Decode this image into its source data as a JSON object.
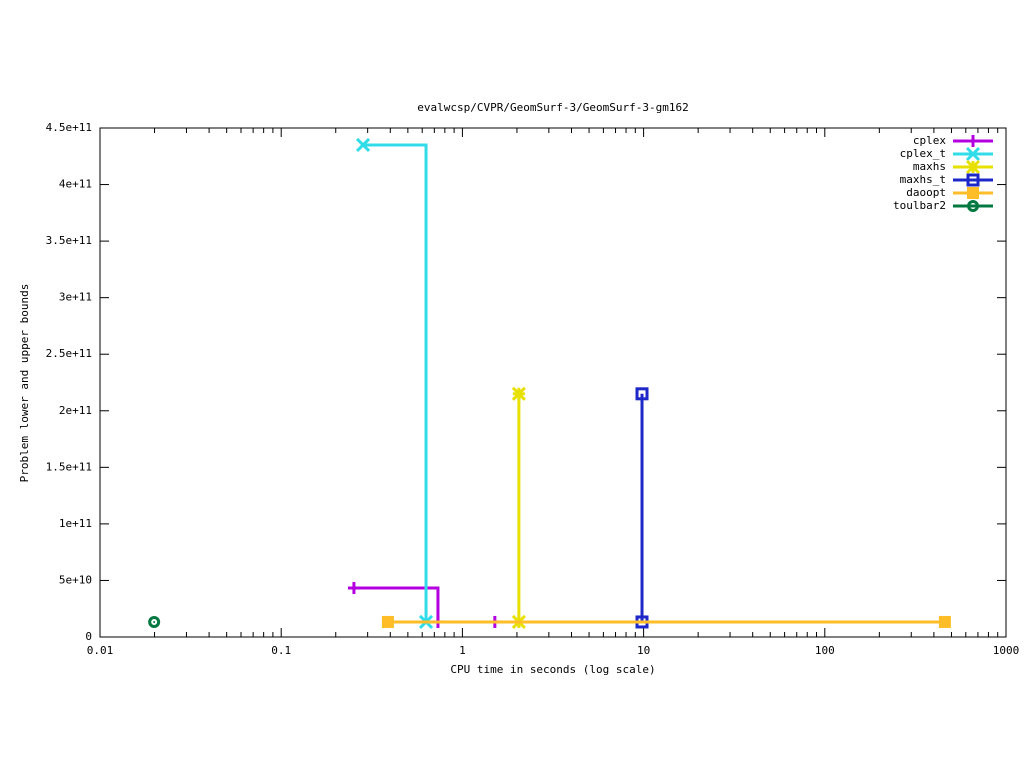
{
  "chart_data": {
    "type": "step",
    "title": "evalwcsp/CVPR/GeomSurf-3/GeomSurf-3-gm162",
    "x_label": "CPU time in seconds (log scale)",
    "y_label": "Problem lower and upper bounds",
    "xscale": "log",
    "xlim": [
      0.01,
      1000
    ],
    "xticks": [
      0.01,
      0.1,
      1,
      10,
      100,
      1000
    ],
    "ylim": [
      0,
      450000000000
    ],
    "yticks": [
      0,
      {
        "value": 50000000000,
        "label": "5e+10"
      },
      {
        "value": 100000000000,
        "label": "1e+11"
      },
      {
        "value": 150000000000,
        "label": "1.5e+11"
      },
      {
        "value": 200000000000,
        "label": "2e+11"
      },
      {
        "value": 250000000000,
        "label": "2.5e+11"
      },
      {
        "value": 300000000000,
        "label": "3e+11"
      },
      {
        "value": 350000000000,
        "label": "3.5e+11"
      },
      {
        "value": 400000000000,
        "label": "4e+11"
      },
      {
        "value": 450000000000,
        "label": "4.5e+11"
      }
    ],
    "legend": "top-right",
    "series": [
      {
        "name": "cplex",
        "color": "#b400e0",
        "marker": "plus",
        "x": [
          0.252,
          0.733,
          1.51
        ],
        "values": [
          43300000000,
          13300000000,
          13300000000
        ]
      },
      {
        "name": "cplex_t",
        "color": "#30dce8",
        "marker": "star",
        "x": [
          0.283,
          0.63
        ],
        "values": [
          435000000000,
          13300000000
        ]
      },
      {
        "name": "maxhs",
        "color": "#e8e000",
        "marker": "asterisk",
        "x": [
          2.05,
          2.05
        ],
        "values": [
          215000000000,
          13300000000
        ]
      },
      {
        "name": "maxhs_t",
        "color": "#1e28c8",
        "marker": "square",
        "x": [
          9.8,
          9.8
        ],
        "values": [
          215000000000,
          13300000000
        ]
      },
      {
        "name": "daoopt",
        "color": "#ffbe28",
        "marker": "filled-square",
        "x": [
          0.388,
          460
        ],
        "values": [
          13300000000,
          13300000000
        ]
      },
      {
        "name": "toulbar2",
        "color": "#007840",
        "marker": "circle",
        "x": [
          0.0199
        ],
        "values": [
          13300000000
        ]
      }
    ]
  }
}
